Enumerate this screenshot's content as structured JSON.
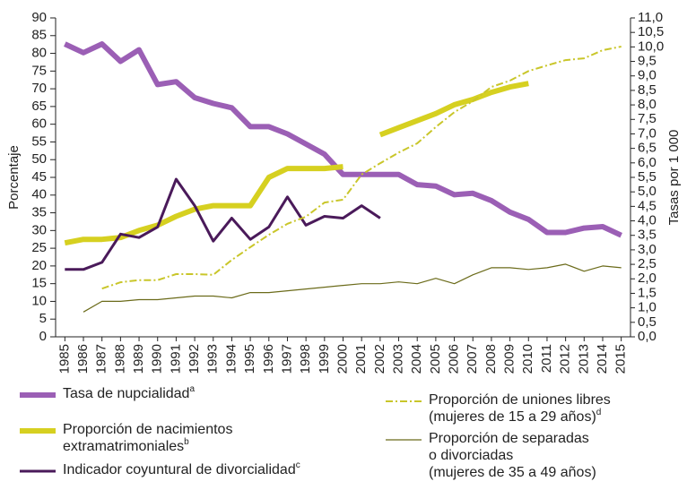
{
  "chart_data": {
    "type": "line",
    "x": [
      1985,
      1986,
      1987,
      1988,
      1989,
      1990,
      1991,
      1992,
      1993,
      1994,
      1995,
      1996,
      1997,
      1998,
      1999,
      2000,
      2001,
      2002,
      2003,
      2004,
      2005,
      2006,
      2007,
      2008,
      2009,
      2010,
      2011,
      2012,
      2013,
      2014,
      2015
    ],
    "xlim": [
      1984.5,
      2015.5
    ],
    "ylabel": "Porcentaje",
    "y2label": "Tasas por 1 000",
    "ylim": [
      0,
      90
    ],
    "yticks": [
      0,
      5,
      10,
      15,
      20,
      25,
      30,
      35,
      40,
      45,
      50,
      55,
      60,
      65,
      70,
      75,
      80,
      85,
      90
    ],
    "y2lim": [
      0,
      11
    ],
    "y2ticks": [
      {
        "value": 0,
        "label": "0,0"
      },
      {
        "value": 0.5,
        "label": "0,5"
      },
      {
        "value": 1,
        "label": "1,0"
      },
      {
        "value": 1.5,
        "label": "1,5"
      },
      {
        "value": 2,
        "label": "2,0"
      },
      {
        "value": 2.5,
        "label": "2,5"
      },
      {
        "value": 3,
        "label": "3,0"
      },
      {
        "value": 3.5,
        "label": "3,5"
      },
      {
        "value": 4,
        "label": "4,0"
      },
      {
        "value": 4.5,
        "label": "4,5"
      },
      {
        "value": 5,
        "label": "5,0"
      },
      {
        "value": 5.5,
        "label": "5,5"
      },
      {
        "value": 6,
        "label": "6,0"
      },
      {
        "value": 6.5,
        "label": "6,5"
      },
      {
        "value": 7,
        "label": "7,0"
      },
      {
        "value": 7.5,
        "label": "7,5"
      },
      {
        "value": 8,
        "label": "8,0"
      },
      {
        "value": 8.5,
        "label": "8,5"
      },
      {
        "value": 9,
        "label": "9,0"
      },
      {
        "value": 9.5,
        "label": "9,5"
      },
      {
        "value": 10,
        "label": "10,0"
      },
      {
        "value": 10.5,
        "label": "10,5"
      },
      {
        "value": 11,
        "label": "11,0"
      }
    ],
    "series": [
      {
        "name": [
          "Tasa de nupcialidad"
        ],
        "marker": "a",
        "color": "#9b5fb5",
        "width": 6,
        "axis": "y2",
        "values": [
          10.1,
          9.8,
          10.1,
          9.5,
          9.9,
          8.7,
          8.8,
          8.25,
          8.05,
          7.9,
          7.25,
          7.25,
          7.0,
          6.65,
          6.3,
          5.6,
          5.6,
          5.6,
          5.6,
          5.25,
          5.2,
          4.9,
          4.95,
          4.7,
          4.3,
          4.05,
          3.6,
          3.6,
          3.75,
          3.8,
          3.5
        ]
      },
      {
        "name": [
          "Proporción de nacimientos",
          "extramatrimoniales"
        ],
        "marker": "b",
        "color": "#d6d020",
        "width": 6,
        "values": [
          26.5,
          27.5,
          27.5,
          28,
          30,
          31.5,
          34,
          36,
          37,
          37,
          37,
          45,
          47.5,
          47.5,
          47.5,
          48,
          null,
          57,
          59,
          61,
          63,
          65.5,
          67,
          69,
          70.5,
          71.5,
          null,
          null,
          null,
          null,
          null
        ]
      },
      {
        "name": [
          "Indicador coyuntural de divorcialidad"
        ],
        "marker": "c",
        "color": "#4a1a5a",
        "width": 3,
        "values": [
          19,
          19,
          21,
          29,
          28,
          31,
          44.5,
          37,
          27,
          33.5,
          27.5,
          31,
          39.5,
          31.5,
          34,
          33.5,
          37,
          33.5,
          null,
          null,
          null,
          null,
          null,
          null,
          null,
          null,
          null,
          null,
          null,
          null,
          null
        ]
      },
      {
        "name": [
          "Proporción de uniones libres",
          "(mujeres de 15 a 29 años)"
        ],
        "marker": "d",
        "color": "#c9c62a",
        "width": 2,
        "dash": "8 3 2 3",
        "values": [
          null,
          null,
          13.6,
          15.4,
          16,
          16,
          17.7,
          17.7,
          17.5,
          21.7,
          25.3,
          28.8,
          31.9,
          33.9,
          37.9,
          38.7,
          45.8,
          49,
          52,
          54.6,
          59.2,
          63.4,
          66.5,
          70.5,
          72.3,
          75,
          76.6,
          78.1,
          78.6,
          80.9,
          81.9
        ]
      },
      {
        "name": [
          "Proporción de separadas",
          "o divorciadas",
          "(mujeres de 35 a 49 años)"
        ],
        "color": "#6b6b1a",
        "width": 1.2,
        "values": [
          null,
          7,
          10,
          10,
          10.5,
          10.5,
          11,
          11.5,
          11.5,
          11,
          12.5,
          12.5,
          13,
          13.5,
          14,
          14.5,
          15,
          15,
          15.5,
          15,
          16.5,
          15,
          17.5,
          19.5,
          19.5,
          19,
          19.5,
          20.5,
          18.5,
          20,
          19.5
        ]
      }
    ]
  }
}
